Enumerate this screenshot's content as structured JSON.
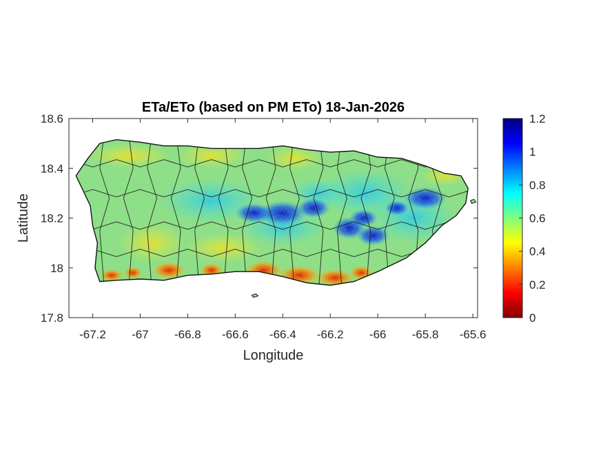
{
  "chart_data": {
    "type": "heatmap",
    "title": "ETa/ETo (based on PM ETo) 18-Jan-2026",
    "xlabel": "Longitude",
    "ylabel": "Latitude",
    "xlim": [
      -67.3,
      -65.58
    ],
    "ylim": [
      17.8,
      18.6
    ],
    "xticks": [
      "-67.2",
      "-67",
      "-66.8",
      "-66.6",
      "-66.4",
      "-66.2",
      "-66",
      "-65.8",
      "-65.6"
    ],
    "xtick_values": [
      -67.2,
      -67.0,
      -66.8,
      -66.6,
      -66.4,
      -66.2,
      -66.0,
      -65.8,
      -65.6
    ],
    "yticks": [
      "17.8",
      "18",
      "18.2",
      "18.4",
      "18.6"
    ],
    "ytick_values": [
      17.8,
      18.0,
      18.2,
      18.4,
      18.6
    ],
    "colorbar": {
      "colormap": "jet",
      "range": [
        0,
        1.2
      ],
      "ticks": [
        "0",
        "0.2",
        "0.4",
        "0.6",
        "0.8",
        "1",
        "1.2"
      ],
      "tick_values": [
        0,
        0.2,
        0.4,
        0.6,
        0.8,
        1.0,
        1.2
      ]
    },
    "grid": false,
    "region_outline": [
      [
        -67.27,
        18.37
      ],
      [
        -67.22,
        18.44
      ],
      [
        -67.17,
        18.5
      ],
      [
        -67.1,
        18.515
      ],
      [
        -67.0,
        18.505
      ],
      [
        -66.9,
        18.49
      ],
      [
        -66.8,
        18.49
      ],
      [
        -66.7,
        18.48
      ],
      [
        -66.6,
        18.48
      ],
      [
        -66.5,
        18.48
      ],
      [
        -66.4,
        18.49
      ],
      [
        -66.3,
        18.475
      ],
      [
        -66.2,
        18.465
      ],
      [
        -66.1,
        18.47
      ],
      [
        -66.0,
        18.445
      ],
      [
        -65.9,
        18.44
      ],
      [
        -65.8,
        18.41
      ],
      [
        -65.72,
        18.38
      ],
      [
        -65.65,
        18.37
      ],
      [
        -65.62,
        18.32
      ],
      [
        -65.63,
        18.26
      ],
      [
        -65.67,
        18.21
      ],
      [
        -65.73,
        18.17
      ],
      [
        -65.8,
        18.1
      ],
      [
        -65.88,
        18.04
      ],
      [
        -66.0,
        17.985
      ],
      [
        -66.1,
        17.945
      ],
      [
        -66.2,
        17.93
      ],
      [
        -66.3,
        17.94
      ],
      [
        -66.4,
        17.965
      ],
      [
        -66.5,
        17.985
      ],
      [
        -66.6,
        17.985
      ],
      [
        -66.7,
        17.975
      ],
      [
        -66.8,
        17.97
      ],
      [
        -66.9,
        17.95
      ],
      [
        -67.0,
        17.955
      ],
      [
        -67.1,
        17.95
      ],
      [
        -67.17,
        17.945
      ],
      [
        -67.19,
        18.0
      ],
      [
        -67.18,
        18.1
      ],
      [
        -67.2,
        18.17
      ],
      [
        -67.21,
        18.25
      ],
      [
        -67.25,
        18.33
      ]
    ],
    "value_pattern": [
      {
        "area": "central mountains, -66.55 to -66.25 lon / 18.18 to 18.26 lat",
        "value": 1.05
      },
      {
        "area": "east-central, -66.15 to -65.95 lon / 18.10 to 18.20 lat",
        "value": 1.0
      },
      {
        "area": "northeast, around -65.8 lon / 18.28 lat",
        "value": 1.05
      },
      {
        "area": "south coast, -66.90 to -66.05 lon / 17.93 to 18.03 lat",
        "value": 0.25
      },
      {
        "area": "western and northern lowlands",
        "value": 0.55
      }
    ]
  }
}
